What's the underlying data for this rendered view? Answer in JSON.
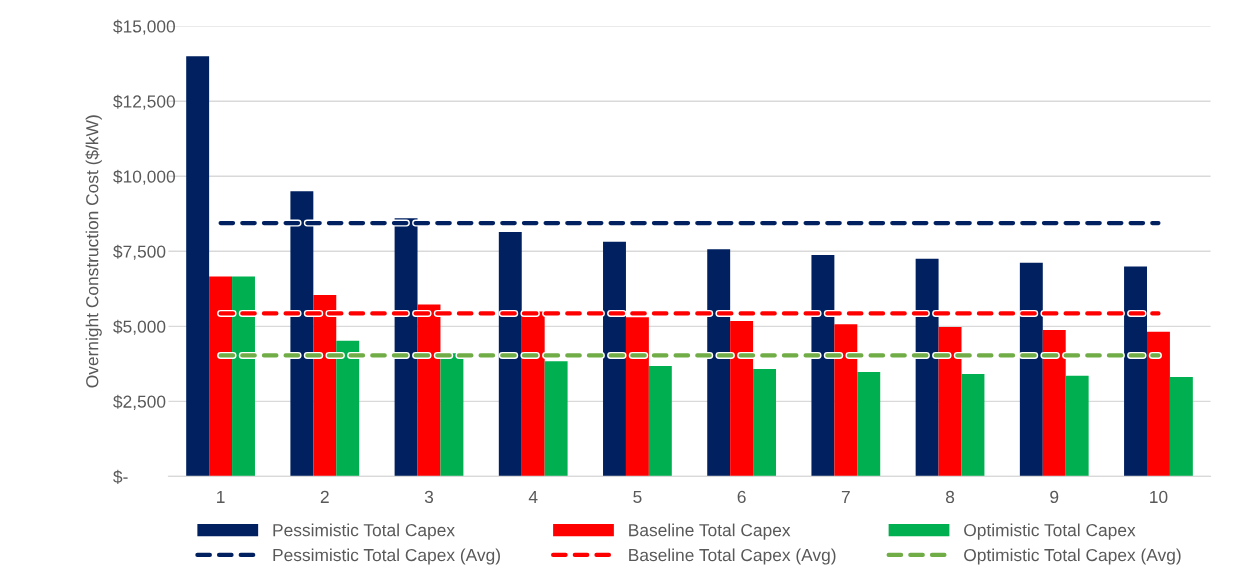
{
  "chart_data": {
    "type": "bar",
    "ylabel": "Overnight Construction Cost ($/kW)",
    "categories": [
      "1",
      "2",
      "3",
      "4",
      "5",
      "6",
      "7",
      "8",
      "9",
      "10"
    ],
    "series": [
      {
        "name": "Pessimistic Total Capex",
        "color": "#002060",
        "values": [
          14000,
          9500,
          8600,
          8140,
          7820,
          7570,
          7380,
          7250,
          7120,
          6990
        ]
      },
      {
        "name": "Baseline Total Capex",
        "color": "#ff0000",
        "values": [
          6660,
          6040,
          5730,
          5490,
          5300,
          5180,
          5070,
          4980,
          4880,
          4820
        ]
      },
      {
        "name": "Optimistic Total Capex",
        "color": "#00b050",
        "values": [
          6660,
          4520,
          4100,
          3840,
          3680,
          3580,
          3480,
          3410,
          3350,
          3310
        ]
      },
      {
        "name": "Pessimistic Total Capex (Avg)",
        "type": "line",
        "line_style": "dashed",
        "color": "#002060",
        "values": [
          8440,
          8440,
          8440,
          8440,
          8440,
          8440,
          8440,
          8440,
          8440,
          8440
        ]
      },
      {
        "name": "Baseline Total Capex (Avg)",
        "type": "line",
        "line_style": "dashed",
        "color": "#ff0000",
        "values": [
          5430,
          5430,
          5430,
          5430,
          5430,
          5430,
          5430,
          5430,
          5430,
          5430
        ]
      },
      {
        "name": "Optimistic Total Capex (Avg)",
        "type": "line",
        "line_style": "dashed",
        "color": "#70ad47",
        "values": [
          4030,
          4030,
          4030,
          4030,
          4030,
          4030,
          4030,
          4030,
          4030,
          4030
        ]
      }
    ],
    "ylim": [
      0,
      15000
    ],
    "yticks": [
      {
        "value": 0,
        "label": "$-"
      },
      {
        "value": 2500,
        "label": "$2,500"
      },
      {
        "value": 5000,
        "label": "$5,000"
      },
      {
        "value": 7500,
        "label": "$7,500"
      },
      {
        "value": 10000,
        "label": "$10,000"
      },
      {
        "value": 12500,
        "label": "$12,500"
      },
      {
        "value": 15000,
        "label": "$15,000"
      }
    ],
    "grid": "y",
    "legend": "bottom"
  }
}
